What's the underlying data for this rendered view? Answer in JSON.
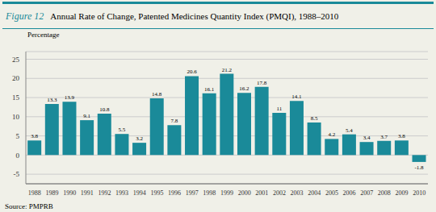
{
  "chart_data": {
    "type": "bar",
    "title": "Annual Rate of Change, Patented Medicines Quantity Index (PMQI), 1988–2010",
    "annotations": [
      "Figure 12",
      "Source: PMPRB"
    ],
    "ylabel": "Percentage",
    "categories": [
      "1988",
      "1989",
      "1990",
      "1991",
      "1992",
      "1993",
      "1994",
      "1995",
      "1996",
      "1997",
      "1998",
      "1999",
      "2000",
      "2001",
      "2002",
      "2003",
      "2004",
      "2005",
      "2006",
      "2007",
      "2008",
      "2009",
      "2010"
    ],
    "values": [
      3.8,
      13.3,
      13.9,
      9.1,
      10.8,
      5.5,
      3.2,
      14.8,
      7.8,
      20.6,
      16.1,
      21.2,
      16.2,
      17.8,
      11.0,
      14.1,
      8.5,
      4.2,
      5.4,
      3.4,
      3.7,
      3.8,
      -1.8
    ],
    "color": "#1a8a99",
    "ylim": [
      -7.5,
      27
    ],
    "yticks": [
      -5,
      0,
      5,
      10,
      15,
      20,
      25
    ],
    "grid": true,
    "data_labels": true
  }
}
